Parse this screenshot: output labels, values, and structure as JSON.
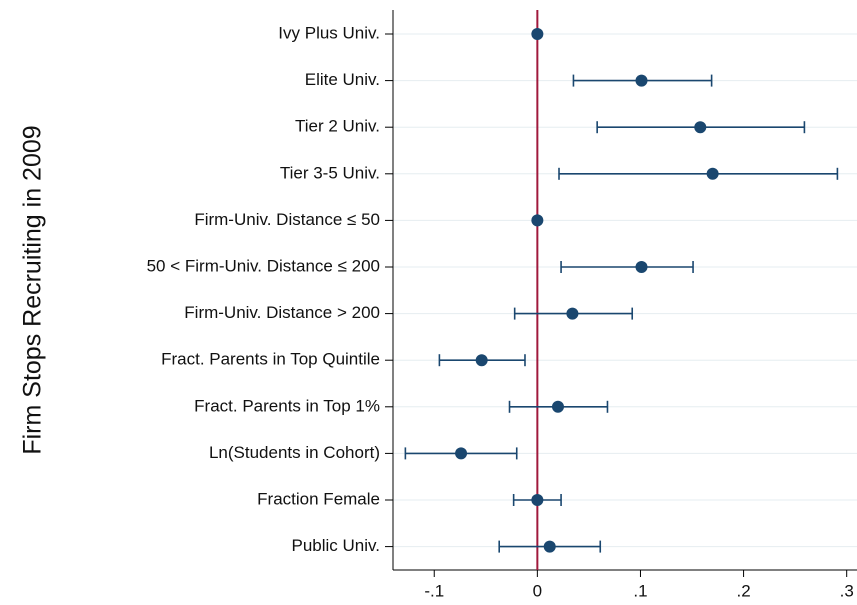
{
  "chart_data": {
    "type": "coefplot",
    "ylabel": "Firm Stops Recruiting in 2009",
    "categories": [
      "Ivy Plus Univ.",
      "Elite Univ.",
      "Tier 2 Univ.",
      "Tier 3-5 Univ.",
      "Firm-Univ. Distance ≤ 50",
      "50 < Firm-Univ. Distance ≤ 200",
      "Firm-Univ. Distance > 200",
      "Fract. Parents in Top Quintile",
      "Fract. Parents in Top 1%",
      "Ln(Students in Cohort)",
      "Fraction Female",
      "Public Univ."
    ],
    "values": [
      0,
      0.101,
      0.158,
      0.17,
      0,
      0.101,
      0.034,
      -0.054,
      0.02,
      -0.074,
      0,
      0.012
    ],
    "lower": [
      0,
      0.035,
      0.058,
      0.021,
      0,
      0.023,
      -0.022,
      -0.095,
      -0.027,
      -0.128,
      -0.023,
      -0.037
    ],
    "upper": [
      0,
      0.169,
      0.259,
      0.291,
      0,
      0.151,
      0.092,
      -0.012,
      0.068,
      -0.02,
      0.023,
      0.061
    ],
    "color": "#1a476f",
    "reference_line": 0,
    "reference_color": "#a0193c",
    "xlim": [
      -0.14,
      0.31
    ],
    "xticks": [
      {
        "value": -0.1,
        "label": "-.1"
      },
      0,
      {
        "value": 0.1,
        "label": ".1"
      },
      {
        "value": 0.2,
        "label": ".2"
      },
      {
        "value": 0.3,
        "label": ".3"
      }
    ],
    "grid": true
  }
}
